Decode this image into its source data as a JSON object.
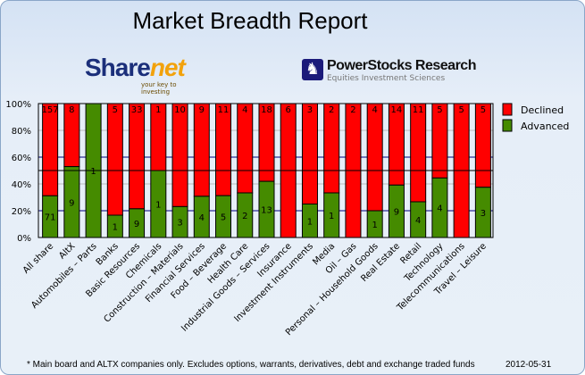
{
  "header": {
    "title": "Market Breadth Report",
    "logo_left": "Sharenet",
    "logo_left_tagline": "your key to investing",
    "logo_right": "PowerStocks Research",
    "logo_right_tagline": "Equities Investment Sciences"
  },
  "footer": {
    "note": "* Main board and ALTX companies only. Excludes options, warrants, derivatives, debt and exchange traded funds",
    "date": "2012-05-31"
  },
  "chart_data": {
    "type": "bar",
    "stacked": "percent",
    "title": "Market Breadth Report",
    "categories": [
      "All share",
      "AltX",
      "Automobiles – Parts",
      "Banks",
      "Basic Resources",
      "Chemicals",
      "Construction – Materials",
      "Financial Services",
      "Food – Beverage",
      "Health Care",
      "Industrial Goods – Services",
      "Insurance",
      "Investment Instruments",
      "Media",
      "Oil – Gas",
      "Personal – Household Goods",
      "Real Estate",
      "Retail",
      "Technology",
      "Telecommunications",
      "Travel – Leisure"
    ],
    "series": [
      {
        "name": "Advanced",
        "color": "#458b00",
        "values": [
          71,
          9,
          1,
          1,
          9,
          1,
          3,
          4,
          5,
          2,
          13,
          0,
          1,
          1,
          0,
          1,
          9,
          4,
          4,
          0,
          3
        ]
      },
      {
        "name": "Declined",
        "color": "#ff0000",
        "values": [
          157,
          8,
          0,
          5,
          33,
          1,
          10,
          9,
          11,
          4,
          18,
          6,
          3,
          2,
          2,
          4,
          14,
          11,
          5,
          5,
          5
        ]
      }
    ],
    "yticks": [
      "0%",
      "20%",
      "40%",
      "60%",
      "80%",
      "100%"
    ],
    "ylim": [
      0,
      100
    ],
    "reference_line": 50,
    "legend": "right",
    "grid": true
  }
}
